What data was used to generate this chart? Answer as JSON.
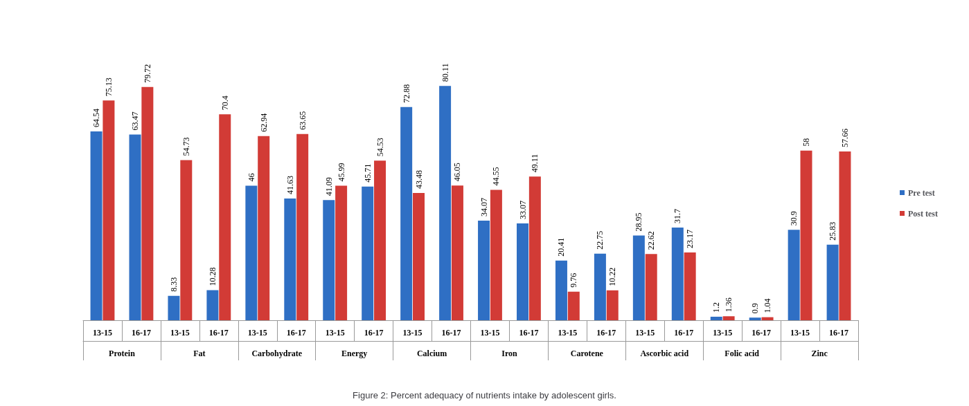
{
  "chart_data": {
    "type": "bar",
    "title": "Figure 2: Percent adequacy of nutrients intake by adolescent girls.",
    "categories": [
      "13-15",
      "16-17",
      "13-15",
      "16-17",
      "13-15",
      "16-17",
      "13-15",
      "16-17",
      "13-15",
      "16-17",
      "13-15",
      "16-17",
      "13-15",
      "16-17",
      "13-15",
      "16-17",
      "13-15",
      "16-17",
      "13-15",
      "16-17"
    ],
    "annotations": [
      "Protein",
      "Fat",
      "Carbohydrate",
      "Energy",
      "Calcium",
      "Iron",
      "Carotene",
      "Ascorbic acid",
      "Folic acid",
      "Zinc"
    ],
    "series": [
      {
        "name": "Pre test",
        "color": "#2f6fc4",
        "values": [
          64.54,
          63.47,
          8.33,
          10.28,
          46,
          41.63,
          41.09,
          45.71,
          72.88,
          80.11,
          34.07,
          33.07,
          20.41,
          22.75,
          28.95,
          31.7,
          1.2,
          0.9,
          30.9,
          25.83
        ]
      },
      {
        "name": "Post test",
        "color": "#d23b36",
        "values": [
          75.13,
          79.72,
          54.73,
          70.4,
          62.94,
          63.65,
          45.99,
          54.53,
          43.48,
          46.05,
          44.55,
          49.11,
          9.76,
          10.22,
          22.62,
          23.17,
          1.36,
          1.04,
          58,
          57.66
        ]
      }
    ],
    "data_labels": true,
    "legend": "right"
  }
}
